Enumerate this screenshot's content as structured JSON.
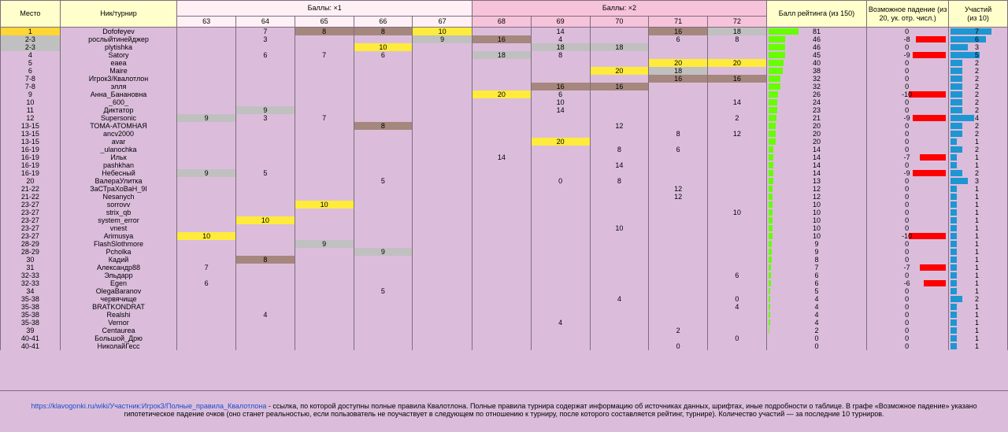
{
  "headers": {
    "place": "Место",
    "nick": "Ник/турнир",
    "group1": "Баллы: ×1",
    "group2": "Баллы: ×2",
    "rating": "Балл рейтинга (из 150)",
    "drop": "Возможное падение (из 20, ук. отр. числ.)",
    "count_top": "Участий",
    "count_bottom": "(из 10)",
    "tournaments": [
      "63",
      "64",
      "65",
      "66",
      "67",
      "68",
      "69",
      "70",
      "71",
      "72"
    ]
  },
  "colors": {
    "yellow": "#ffeb3b",
    "brown": "#a6877e",
    "gray": "#c0c0c0",
    "first_place": "#ffd633",
    "rating_bar": "#66ff00",
    "drop_bar": "#ff0000",
    "count_bar": "#1e96d2"
  },
  "rows": [
    {
      "place": "1",
      "nick": "Dofofeyev",
      "scores": [
        "",
        "7",
        "8",
        "8",
        "10",
        "",
        "14",
        "",
        "16",
        "18"
      ],
      "marks": [
        "",
        "",
        "b",
        "b",
        "y",
        "",
        "",
        "",
        "b",
        "g"
      ],
      "rating": 81,
      "drop": 0,
      "count": 7
    },
    {
      "place": "2-3",
      "nick": "рослыйтинейджер",
      "scores": [
        "",
        "3",
        "",
        "",
        "9",
        "16",
        "4",
        "",
        "6",
        "8"
      ],
      "marks": [
        "",
        "",
        "",
        "",
        "g",
        "b",
        "",
        "",
        "",
        ""
      ],
      "rating": 46,
      "drop": -8,
      "count": 6
    },
    {
      "place": "2-3",
      "nick": "plytishka",
      "scores": [
        "",
        "",
        "",
        "10",
        "",
        "",
        "18",
        "18",
        "",
        ""
      ],
      "marks": [
        "",
        "",
        "",
        "y",
        "",
        "",
        "g",
        "g",
        "",
        ""
      ],
      "rating": 46,
      "drop": 0,
      "count": 3
    },
    {
      "place": "4",
      "nick": "Satory",
      "scores": [
        "",
        "6",
        "7",
        "6",
        "",
        "18",
        "8",
        "",
        "",
        ""
      ],
      "marks": [
        "",
        "",
        "",
        "",
        "",
        "g",
        "",
        "",
        "",
        ""
      ],
      "rating": 45,
      "drop": -9,
      "count": 5
    },
    {
      "place": "5",
      "nick": "eaea",
      "scores": [
        "",
        "",
        "",
        "",
        "",
        "",
        "",
        "",
        "20",
        "20"
      ],
      "marks": [
        "",
        "",
        "",
        "",
        "",
        "",
        "",
        "",
        "y",
        "y"
      ],
      "rating": 40,
      "drop": 0,
      "count": 2
    },
    {
      "place": "6",
      "nick": "Maire",
      "scores": [
        "",
        "",
        "",
        "",
        "",
        "",
        "",
        "20",
        "18",
        ""
      ],
      "marks": [
        "",
        "",
        "",
        "",
        "",
        "",
        "",
        "y",
        "g",
        ""
      ],
      "rating": 38,
      "drop": 0,
      "count": 2
    },
    {
      "place": "7-8",
      "nick": "Игрок3/Квалотлон",
      "scores": [
        "",
        "",
        "",
        "",
        "",
        "",
        "",
        "",
        "16",
        "16"
      ],
      "marks": [
        "",
        "",
        "",
        "",
        "",
        "",
        "",
        "",
        "b",
        "b"
      ],
      "rating": 32,
      "drop": 0,
      "count": 2
    },
    {
      "place": "7-8",
      "nick": "элля",
      "scores": [
        "",
        "",
        "",
        "",
        "",
        "",
        "16",
        "16",
        "",
        ""
      ],
      "marks": [
        "",
        "",
        "",
        "",
        "",
        "",
        "b",
        "b",
        "",
        ""
      ],
      "rating": 32,
      "drop": 0,
      "count": 2
    },
    {
      "place": "9",
      "nick": "Анна_Банановна",
      "scores": [
        "",
        "",
        "",
        "",
        "",
        "20",
        "6",
        "",
        "",
        ""
      ],
      "marks": [
        "",
        "",
        "",
        "",
        "",
        "y",
        "",
        "",
        "",
        ""
      ],
      "rating": 26,
      "drop": -10,
      "count": 2
    },
    {
      "place": "10",
      "nick": "_600_",
      "scores": [
        "",
        "",
        "",
        "",
        "",
        "",
        "10",
        "",
        "",
        "14"
      ],
      "marks": [
        "",
        "",
        "",
        "",
        "",
        "",
        "",
        "",
        "",
        ""
      ],
      "rating": 24,
      "drop": 0,
      "count": 2
    },
    {
      "place": "11",
      "nick": "Диктатор",
      "scores": [
        "",
        "9",
        "",
        "",
        "",
        "",
        "14",
        "",
        "",
        ""
      ],
      "marks": [
        "",
        "g",
        "",
        "",
        "",
        "",
        "",
        "",
        "",
        ""
      ],
      "rating": 23,
      "drop": 0,
      "count": 2
    },
    {
      "place": "12",
      "nick": "Supersonic",
      "scores": [
        "9",
        "3",
        "7",
        "",
        "",
        "",
        "",
        "",
        "",
        "2"
      ],
      "marks": [
        "g",
        "",
        "",
        "",
        "",
        "",
        "",
        "",
        "",
        ""
      ],
      "rating": 21,
      "drop": -9,
      "count": 4
    },
    {
      "place": "13-15",
      "nick": "ТОМА-АТОМНАЯ",
      "scores": [
        "",
        "",
        "",
        "8",
        "",
        "",
        "",
        "12",
        "",
        ""
      ],
      "marks": [
        "",
        "",
        "",
        "b",
        "",
        "",
        "",
        "",
        "",
        ""
      ],
      "rating": 20,
      "drop": 0,
      "count": 2
    },
    {
      "place": "13-15",
      "nick": "ancv2000",
      "scores": [
        "",
        "",
        "",
        "",
        "",
        "",
        "",
        "",
        "8",
        "12"
      ],
      "marks": [
        "",
        "",
        "",
        "",
        "",
        "",
        "",
        "",
        "",
        ""
      ],
      "rating": 20,
      "drop": 0,
      "count": 2
    },
    {
      "place": "13-15",
      "nick": "avar",
      "scores": [
        "",
        "",
        "",
        "",
        "",
        "",
        "20",
        "",
        "",
        ""
      ],
      "marks": [
        "",
        "",
        "",
        "",
        "",
        "",
        "y",
        "",
        "",
        ""
      ],
      "rating": 20,
      "drop": 0,
      "count": 1
    },
    {
      "place": "16-19",
      "nick": "_ulanochka",
      "scores": [
        "",
        "",
        "",
        "",
        "",
        "",
        "",
        "8",
        "6",
        ""
      ],
      "marks": [
        "",
        "",
        "",
        "",
        "",
        "",
        "",
        "",
        "",
        ""
      ],
      "rating": 14,
      "drop": 0,
      "count": 2
    },
    {
      "place": "16-19",
      "nick": "Ильк",
      "scores": [
        "",
        "",
        "",
        "",
        "",
        "14",
        "",
        "",
        "",
        ""
      ],
      "marks": [
        "",
        "",
        "",
        "",
        "",
        "",
        "",
        "",
        "",
        ""
      ],
      "rating": 14,
      "drop": -7,
      "count": 1
    },
    {
      "place": "16-19",
      "nick": "pashkhan",
      "scores": [
        "",
        "",
        "",
        "",
        "",
        "",
        "",
        "14",
        "",
        ""
      ],
      "marks": [
        "",
        "",
        "",
        "",
        "",
        "",
        "",
        "",
        "",
        ""
      ],
      "rating": 14,
      "drop": 0,
      "count": 1
    },
    {
      "place": "16-19",
      "nick": "Небесный",
      "scores": [
        "9",
        "5",
        "",
        "",
        "",
        "",
        "",
        "",
        "",
        ""
      ],
      "marks": [
        "g",
        "",
        "",
        "",
        "",
        "",
        "",
        "",
        "",
        ""
      ],
      "rating": 14,
      "drop": -9,
      "count": 2
    },
    {
      "place": "20",
      "nick": "ВалераУлитка",
      "scores": [
        "",
        "",
        "",
        "5",
        "",
        "",
        "0",
        "8",
        "",
        ""
      ],
      "marks": [
        "",
        "",
        "",
        "",
        "",
        "",
        "",
        "",
        "",
        ""
      ],
      "rating": 13,
      "drop": 0,
      "count": 3
    },
    {
      "place": "21-22",
      "nick": "ЗаСТраХоВаН_9I",
      "scores": [
        "",
        "",
        "",
        "",
        "",
        "",
        "",
        "",
        "12",
        ""
      ],
      "marks": [
        "",
        "",
        "",
        "",
        "",
        "",
        "",
        "",
        "",
        ""
      ],
      "rating": 12,
      "drop": 0,
      "count": 1
    },
    {
      "place": "21-22",
      "nick": "Nesanych",
      "scores": [
        "",
        "",
        "",
        "",
        "",
        "",
        "",
        "",
        "12",
        ""
      ],
      "marks": [
        "",
        "",
        "",
        "",
        "",
        "",
        "",
        "",
        "",
        ""
      ],
      "rating": 12,
      "drop": 0,
      "count": 1
    },
    {
      "place": "23-27",
      "nick": "sorrovv",
      "scores": [
        "",
        "",
        "10",
        "",
        "",
        "",
        "",
        "",
        "",
        ""
      ],
      "marks": [
        "",
        "",
        "y",
        "",
        "",
        "",
        "",
        "",
        "",
        ""
      ],
      "rating": 10,
      "drop": 0,
      "count": 1
    },
    {
      "place": "23-27",
      "nick": "strix_qb",
      "scores": [
        "",
        "",
        "",
        "",
        "",
        "",
        "",
        "",
        "",
        "10"
      ],
      "marks": [
        "",
        "",
        "",
        "",
        "",
        "",
        "",
        "",
        "",
        ""
      ],
      "rating": 10,
      "drop": 0,
      "count": 1
    },
    {
      "place": "23-27",
      "nick": "system_error",
      "scores": [
        "",
        "10",
        "",
        "",
        "",
        "",
        "",
        "",
        "",
        ""
      ],
      "marks": [
        "",
        "y",
        "",
        "",
        "",
        "",
        "",
        "",
        "",
        ""
      ],
      "rating": 10,
      "drop": 0,
      "count": 1
    },
    {
      "place": "23-27",
      "nick": "vnest",
      "scores": [
        "",
        "",
        "",
        "",
        "",
        "",
        "",
        "10",
        "",
        ""
      ],
      "marks": [
        "",
        "",
        "",
        "",
        "",
        "",
        "",
        "",
        "",
        ""
      ],
      "rating": 10,
      "drop": 0,
      "count": 1
    },
    {
      "place": "23-27",
      "nick": "Arimusya",
      "scores": [
        "10",
        "",
        "",
        "",
        "",
        "",
        "",
        "",
        "",
        ""
      ],
      "marks": [
        "y",
        "",
        "",
        "",
        "",
        "",
        "",
        "",
        "",
        ""
      ],
      "rating": 10,
      "drop": -10,
      "count": 1
    },
    {
      "place": "28-29",
      "nick": "FlashSlothmore",
      "scores": [
        "",
        "",
        "9",
        "",
        "",
        "",
        "",
        "",
        "",
        ""
      ],
      "marks": [
        "",
        "",
        "g",
        "",
        "",
        "",
        "",
        "",
        "",
        ""
      ],
      "rating": 9,
      "drop": 0,
      "count": 1
    },
    {
      "place": "28-29",
      "nick": "Pcholka",
      "scores": [
        "",
        "",
        "",
        "9",
        "",
        "",
        "",
        "",
        "",
        ""
      ],
      "marks": [
        "",
        "",
        "",
        "g",
        "",
        "",
        "",
        "",
        "",
        ""
      ],
      "rating": 9,
      "drop": 0,
      "count": 1
    },
    {
      "place": "30",
      "nick": "Кадий",
      "scores": [
        "",
        "8",
        "",
        "",
        "",
        "",
        "",
        "",
        "",
        ""
      ],
      "marks": [
        "",
        "b",
        "",
        "",
        "",
        "",
        "",
        "",
        "",
        ""
      ],
      "rating": 8,
      "drop": 0,
      "count": 1
    },
    {
      "place": "31",
      "nick": "Александр88",
      "scores": [
        "7",
        "",
        "",
        "",
        "",
        "",
        "",
        "",
        "",
        ""
      ],
      "marks": [
        "",
        "",
        "",
        "",
        "",
        "",
        "",
        "",
        "",
        ""
      ],
      "rating": 7,
      "drop": -7,
      "count": 1
    },
    {
      "place": "32-33",
      "nick": "Эльдарр",
      "scores": [
        "",
        "",
        "",
        "",
        "",
        "",
        "",
        "",
        "",
        "6"
      ],
      "marks": [
        "",
        "",
        "",
        "",
        "",
        "",
        "",
        "",
        "",
        ""
      ],
      "rating": 6,
      "drop": 0,
      "count": 1
    },
    {
      "place": "32-33",
      "nick": "Egen",
      "scores": [
        "6",
        "",
        "",
        "",
        "",
        "",
        "",
        "",
        "",
        ""
      ],
      "marks": [
        "",
        "",
        "",
        "",
        "",
        "",
        "",
        "",
        "",
        ""
      ],
      "rating": 6,
      "drop": -6,
      "count": 1
    },
    {
      "place": "34",
      "nick": "OlegaBaranov",
      "scores": [
        "",
        "",
        "",
        "5",
        "",
        "",
        "",
        "",
        "",
        ""
      ],
      "marks": [
        "",
        "",
        "",
        "",
        "",
        "",
        "",
        "",
        "",
        ""
      ],
      "rating": 5,
      "drop": 0,
      "count": 1
    },
    {
      "place": "35-38",
      "nick": "червячище",
      "scores": [
        "",
        "",
        "",
        "",
        "",
        "",
        "",
        "4",
        "",
        "0"
      ],
      "marks": [
        "",
        "",
        "",
        "",
        "",
        "",
        "",
        "",
        "",
        ""
      ],
      "rating": 4,
      "drop": 0,
      "count": 2
    },
    {
      "place": "35-38",
      "nick": "BRATKONDRAT",
      "scores": [
        "",
        "",
        "",
        "",
        "",
        "",
        "",
        "",
        "",
        "4"
      ],
      "marks": [
        "",
        "",
        "",
        "",
        "",
        "",
        "",
        "",
        "",
        ""
      ],
      "rating": 4,
      "drop": 0,
      "count": 1
    },
    {
      "place": "35-38",
      "nick": "Realshi",
      "scores": [
        "",
        "4",
        "",
        "",
        "",
        "",
        "",
        "",
        "",
        ""
      ],
      "marks": [
        "",
        "",
        "",
        "",
        "",
        "",
        "",
        "",
        "",
        ""
      ],
      "rating": 4,
      "drop": 0,
      "count": 1
    },
    {
      "place": "35-38",
      "nick": "Vernor",
      "scores": [
        "",
        "",
        "",
        "",
        "",
        "",
        "4",
        "",
        "",
        ""
      ],
      "marks": [
        "",
        "",
        "",
        "",
        "",
        "",
        "",
        "",
        "",
        ""
      ],
      "rating": 4,
      "drop": 0,
      "count": 1
    },
    {
      "place": "39",
      "nick": "Centaurea",
      "scores": [
        "",
        "",
        "",
        "",
        "",
        "",
        "",
        "",
        "2",
        ""
      ],
      "marks": [
        "",
        "",
        "",
        "",
        "",
        "",
        "",
        "",
        "",
        ""
      ],
      "rating": 2,
      "drop": 0,
      "count": 1
    },
    {
      "place": "40-41",
      "nick": "Большой_Дрю",
      "scores": [
        "",
        "",
        "",
        "",
        "",
        "",
        "",
        "",
        "",
        "0"
      ],
      "marks": [
        "",
        "",
        "",
        "",
        "",
        "",
        "",
        "",
        "",
        ""
      ],
      "rating": 0,
      "drop": 0,
      "count": 1
    },
    {
      "place": "40-41",
      "nick": "НиколайГесс",
      "scores": [
        "",
        "",
        "",
        "",
        "",
        "",
        "",
        "",
        "0",
        ""
      ],
      "marks": [
        "",
        "",
        "",
        "",
        "",
        "",
        "",
        "",
        "",
        ""
      ],
      "rating": 0,
      "drop": 0,
      "count": 1
    }
  ],
  "footer": {
    "link_text": "https://klavogonki.ru/wiki/Участник:Игрок3/Полные_правила_Квалотлона",
    "text": " - ссылка, по которой доступны полные правила Квалотлона. Полные правила турнира содержат информацию об источниках данных, шрифтах, иные подробности о таблице. В графе «Возможное падение» указано гипотетическое падение очков (оно станет реальностью, если пользователь не поучаствует в следующем по отношению к турниру, после которого составляется рейтинг, турнире). Количество участий — за последние 10 турниров."
  }
}
